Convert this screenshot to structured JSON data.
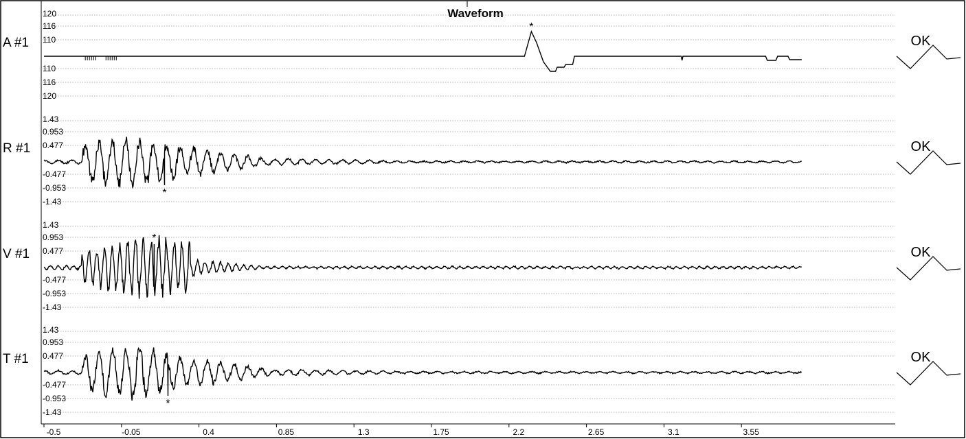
{
  "chart_data": {
    "type": "line",
    "title": "Waveform",
    "x_ticks": [
      "-0.5",
      "-0.05",
      "0.4",
      "0.85",
      "1.3",
      "1.75",
      "2.2",
      "2.65",
      "3.1",
      "3.55"
    ],
    "xlim": [
      -0.5,
      3.9
    ],
    "grid": true,
    "channels": [
      {
        "label": "A #1",
        "status": "OK",
        "ticks_up": [
          "120",
          "116",
          "110"
        ],
        "ticks_down": [
          "110",
          "116",
          "120"
        ],
        "ylim": [
          -120,
          120
        ],
        "kind": "air",
        "peak_marker": {
          "x": 2.33,
          "position": "above"
        }
      },
      {
        "label": "R #1",
        "status": "OK",
        "ticks_up": [
          "1.43",
          "0.953",
          "0.477"
        ],
        "ticks_down": [
          "-0.477",
          "-0.953",
          "-1.43"
        ],
        "ylim": [
          -1.43,
          1.43
        ],
        "kind": "seismic",
        "seed": 3,
        "peak_marker": {
          "x": 0.2,
          "position": "below"
        }
      },
      {
        "label": "V #1",
        "status": "OK",
        "ticks_up": [
          "1.43",
          "0.953",
          "0.477"
        ],
        "ticks_down": [
          "-0.477",
          "-0.953",
          "-1.43"
        ],
        "ylim": [
          -1.43,
          1.43
        ],
        "kind": "seismic-v",
        "seed": 7,
        "peak_marker": {
          "x": 0.14,
          "position": "above"
        }
      },
      {
        "label": "T #1",
        "status": "OK",
        "ticks_up": [
          "1.43",
          "0.953",
          "0.477"
        ],
        "ticks_down": [
          "-0.477",
          "-0.953",
          "-1.43"
        ],
        "ylim": [
          -1.43,
          1.43
        ],
        "kind": "seismic",
        "seed": 11,
        "peak_marker": {
          "x": 0.22,
          "position": "below"
        }
      }
    ]
  }
}
